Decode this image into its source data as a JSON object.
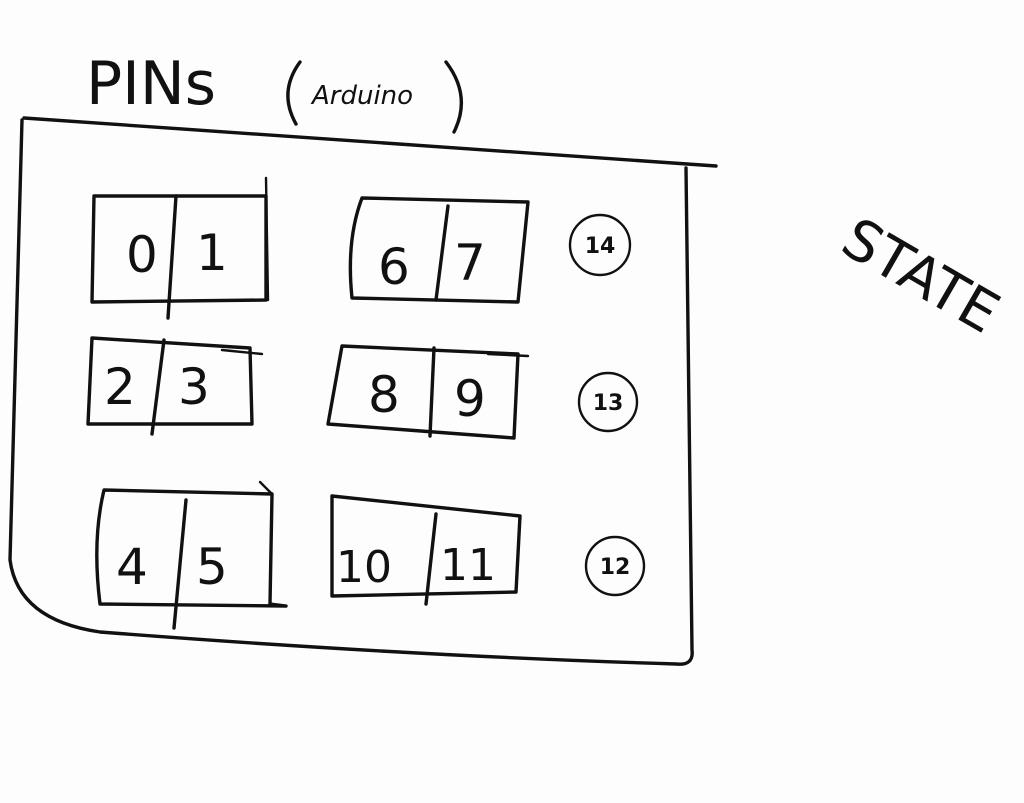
{
  "title": "PINs",
  "subtitle": "Arduino",
  "side_label": "STATE",
  "pin_boxes": [
    {
      "left": "0",
      "right": "1"
    },
    {
      "left": "6",
      "right": "7"
    },
    {
      "left": "2",
      "right": "3"
    },
    {
      "left": "8",
      "right": "9"
    },
    {
      "left": "4",
      "right": "5"
    },
    {
      "left": "10",
      "right": "11"
    }
  ],
  "state_pins": [
    "14",
    "13",
    "12"
  ]
}
